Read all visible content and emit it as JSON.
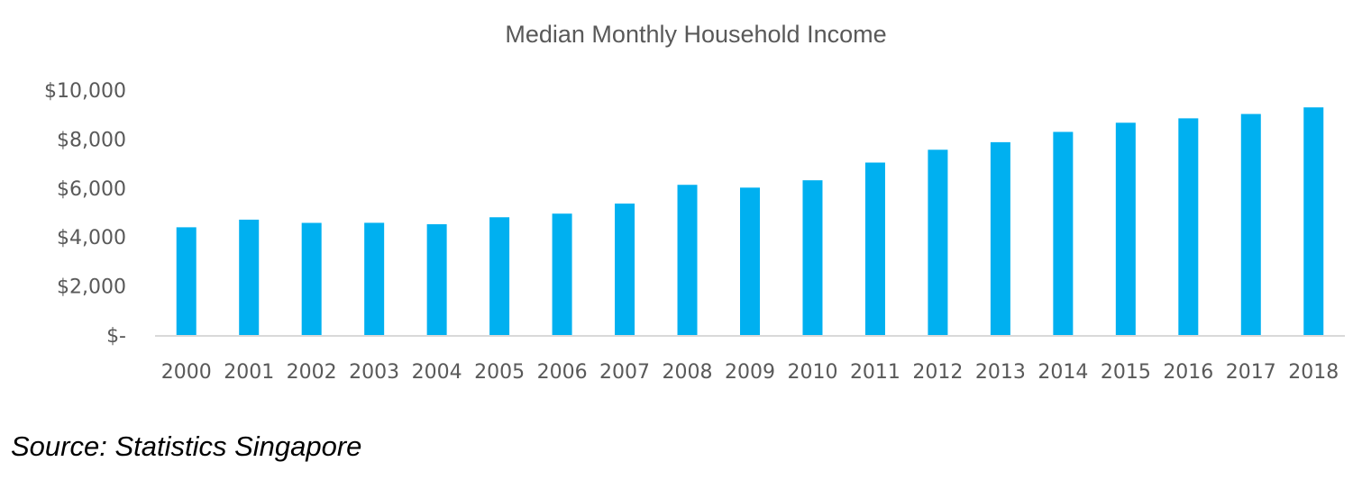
{
  "chart_data": {
    "type": "bar",
    "title": "Median Monthly Household Income",
    "xlabel": "",
    "ylabel": "",
    "categories": [
      "2000",
      "2001",
      "2002",
      "2003",
      "2004",
      "2005",
      "2006",
      "2007",
      "2008",
      "2009",
      "2010",
      "2011",
      "2012",
      "2013",
      "2014",
      "2015",
      "2016",
      "2017",
      "2018"
    ],
    "values": [
      4398,
      4709,
      4578,
      4581,
      4523,
      4807,
      4955,
      5365,
      6131,
      6017,
      6317,
      7040,
      7563,
      7872,
      8292,
      8666,
      8846,
      9023,
      9293
    ],
    "ylim": [
      0,
      10000
    ],
    "yticks": [
      0,
      2000,
      4000,
      6000,
      8000,
      10000
    ],
    "ytick_labels": [
      "$-",
      "$2,000",
      "$4,000",
      "$6,000",
      "$8,000",
      "$10,000"
    ],
    "bar_color": "#00B0F0",
    "grid": false,
    "legend": "none"
  },
  "source_note": "Source: Statistics Singapore"
}
